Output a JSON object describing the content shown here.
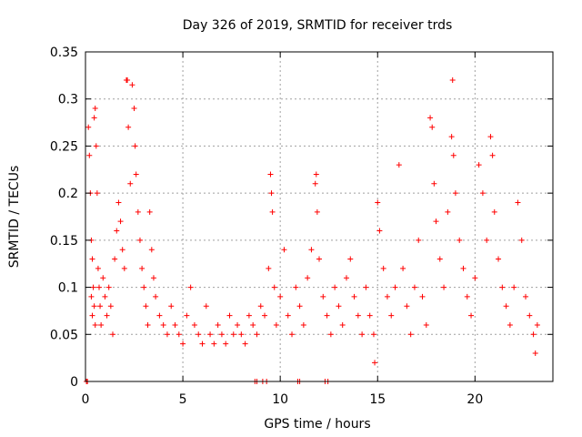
{
  "chart_data": {
    "type": "scatter",
    "title": "Day 326 of 2019, SRMTID for receiver trds",
    "xlabel": "GPS time / hours",
    "ylabel": "SRMTID / TECUs",
    "xlim": [
      0,
      24
    ],
    "ylim": [
      0,
      0.35
    ],
    "x_ticks": [
      0,
      5,
      10,
      15,
      20
    ],
    "x_tick_labels": [
      "0",
      "5",
      "10",
      "15",
      "20"
    ],
    "y_ticks": [
      0,
      0.05,
      0.1,
      0.15,
      0.2,
      0.25,
      0.3,
      0.35
    ],
    "y_tick_labels": [
      "0",
      "0.05",
      "0.1",
      "0.15",
      "0.2",
      "0.25",
      "0.3",
      "0.35"
    ],
    "grid": true,
    "marker": "plus",
    "marker_color": "#ff0000",
    "series": [
      {
        "name": "SRMTID",
        "data": [
          [
            0.05,
            0.0
          ],
          [
            0.1,
            0.0
          ],
          [
            0.15,
            0.27
          ],
          [
            0.2,
            0.24
          ],
          [
            0.25,
            0.2
          ],
          [
            0.3,
            0.15
          ],
          [
            0.35,
            0.13
          ],
          [
            0.4,
            0.1
          ],
          [
            0.45,
            0.08
          ],
          [
            0.5,
            0.06
          ],
          [
            0.3,
            0.09
          ],
          [
            0.35,
            0.07
          ],
          [
            0.45,
            0.28
          ],
          [
            0.5,
            0.29
          ],
          [
            0.55,
            0.25
          ],
          [
            0.6,
            0.2
          ],
          [
            0.65,
            0.12
          ],
          [
            0.7,
            0.1
          ],
          [
            0.75,
            0.08
          ],
          [
            0.8,
            0.06
          ],
          [
            0.9,
            0.11
          ],
          [
            1.0,
            0.09
          ],
          [
            1.1,
            0.07
          ],
          [
            1.2,
            0.1
          ],
          [
            1.3,
            0.08
          ],
          [
            1.4,
            0.05
          ],
          [
            1.5,
            0.13
          ],
          [
            1.6,
            0.16
          ],
          [
            1.7,
            0.19
          ],
          [
            1.8,
            0.17
          ],
          [
            1.9,
            0.14
          ],
          [
            2.0,
            0.12
          ],
          [
            2.1,
            0.32
          ],
          [
            2.15,
            0.32
          ],
          [
            2.2,
            0.27
          ],
          [
            2.3,
            0.21
          ],
          [
            2.4,
            0.315
          ],
          [
            2.5,
            0.29
          ],
          [
            2.55,
            0.25
          ],
          [
            2.6,
            0.22
          ],
          [
            2.7,
            0.18
          ],
          [
            2.8,
            0.15
          ],
          [
            2.9,
            0.12
          ],
          [
            3.0,
            0.1
          ],
          [
            3.1,
            0.08
          ],
          [
            3.2,
            0.06
          ],
          [
            3.3,
            0.18
          ],
          [
            3.4,
            0.14
          ],
          [
            3.5,
            0.11
          ],
          [
            3.6,
            0.09
          ],
          [
            3.8,
            0.07
          ],
          [
            4.0,
            0.06
          ],
          [
            4.2,
            0.05
          ],
          [
            4.4,
            0.08
          ],
          [
            4.6,
            0.06
          ],
          [
            4.8,
            0.05
          ],
          [
            5.0,
            0.04
          ],
          [
            5.2,
            0.07
          ],
          [
            5.4,
            0.1
          ],
          [
            5.6,
            0.06
          ],
          [
            5.8,
            0.05
          ],
          [
            6.0,
            0.04
          ],
          [
            6.2,
            0.08
          ],
          [
            6.4,
            0.05
          ],
          [
            6.6,
            0.04
          ],
          [
            6.8,
            0.06
          ],
          [
            7.0,
            0.05
          ],
          [
            7.2,
            0.04
          ],
          [
            7.4,
            0.07
          ],
          [
            7.6,
            0.05
          ],
          [
            7.8,
            0.06
          ],
          [
            8.0,
            0.05
          ],
          [
            8.2,
            0.04
          ],
          [
            8.4,
            0.07
          ],
          [
            8.6,
            0.06
          ],
          [
            8.8,
            0.05
          ],
          [
            9.0,
            0.08
          ],
          [
            9.2,
            0.07
          ],
          [
            9.4,
            0.12
          ],
          [
            9.5,
            0.22
          ],
          [
            9.55,
            0.2
          ],
          [
            9.6,
            0.18
          ],
          [
            9.7,
            0.1
          ],
          [
            9.8,
            0.06
          ],
          [
            10.0,
            0.09
          ],
          [
            10.2,
            0.14
          ],
          [
            10.4,
            0.07
          ],
          [
            10.6,
            0.05
          ],
          [
            10.8,
            0.1
          ],
          [
            11.0,
            0.08
          ],
          [
            11.2,
            0.06
          ],
          [
            11.4,
            0.11
          ],
          [
            11.6,
            0.14
          ],
          [
            11.8,
            0.21
          ],
          [
            11.85,
            0.22
          ],
          [
            11.9,
            0.18
          ],
          [
            12.0,
            0.13
          ],
          [
            12.2,
            0.09
          ],
          [
            12.4,
            0.07
          ],
          [
            12.6,
            0.05
          ],
          [
            12.8,
            0.1
          ],
          [
            13.0,
            0.08
          ],
          [
            13.2,
            0.06
          ],
          [
            13.4,
            0.11
          ],
          [
            13.6,
            0.13
          ],
          [
            13.8,
            0.09
          ],
          [
            14.0,
            0.07
          ],
          [
            14.2,
            0.05
          ],
          [
            14.4,
            0.1
          ],
          [
            14.6,
            0.07
          ],
          [
            14.8,
            0.05
          ],
          [
            14.85,
            0.02
          ],
          [
            15.0,
            0.19
          ],
          [
            15.1,
            0.16
          ],
          [
            15.3,
            0.12
          ],
          [
            15.5,
            0.09
          ],
          [
            15.7,
            0.07
          ],
          [
            15.9,
            0.1
          ],
          [
            16.1,
            0.23
          ],
          [
            16.3,
            0.12
          ],
          [
            16.5,
            0.08
          ],
          [
            16.7,
            0.05
          ],
          [
            16.9,
            0.1
          ],
          [
            17.1,
            0.15
          ],
          [
            17.3,
            0.09
          ],
          [
            17.5,
            0.06
          ],
          [
            17.7,
            0.28
          ],
          [
            17.8,
            0.27
          ],
          [
            17.9,
            0.21
          ],
          [
            18.0,
            0.17
          ],
          [
            18.2,
            0.13
          ],
          [
            18.4,
            0.1
          ],
          [
            18.6,
            0.18
          ],
          [
            18.8,
            0.26
          ],
          [
            18.85,
            0.32
          ],
          [
            18.9,
            0.24
          ],
          [
            19.0,
            0.2
          ],
          [
            19.2,
            0.15
          ],
          [
            19.4,
            0.12
          ],
          [
            19.6,
            0.09
          ],
          [
            19.8,
            0.07
          ],
          [
            20.0,
            0.11
          ],
          [
            20.2,
            0.23
          ],
          [
            20.4,
            0.2
          ],
          [
            20.6,
            0.15
          ],
          [
            20.8,
            0.26
          ],
          [
            20.9,
            0.24
          ],
          [
            21.0,
            0.18
          ],
          [
            21.2,
            0.13
          ],
          [
            21.4,
            0.1
          ],
          [
            21.6,
            0.08
          ],
          [
            21.8,
            0.06
          ],
          [
            22.0,
            0.1
          ],
          [
            22.2,
            0.19
          ],
          [
            22.4,
            0.15
          ],
          [
            22.6,
            0.09
          ],
          [
            22.8,
            0.07
          ],
          [
            23.0,
            0.05
          ],
          [
            23.1,
            0.03
          ],
          [
            23.2,
            0.06
          ],
          [
            8.7,
            0.0
          ],
          [
            8.8,
            0.0
          ],
          [
            9.1,
            0.0
          ],
          [
            9.3,
            0.0
          ],
          [
            10.9,
            0.0
          ],
          [
            11.0,
            0.0
          ],
          [
            12.3,
            0.0
          ],
          [
            12.45,
            0.0
          ]
        ]
      }
    ]
  }
}
